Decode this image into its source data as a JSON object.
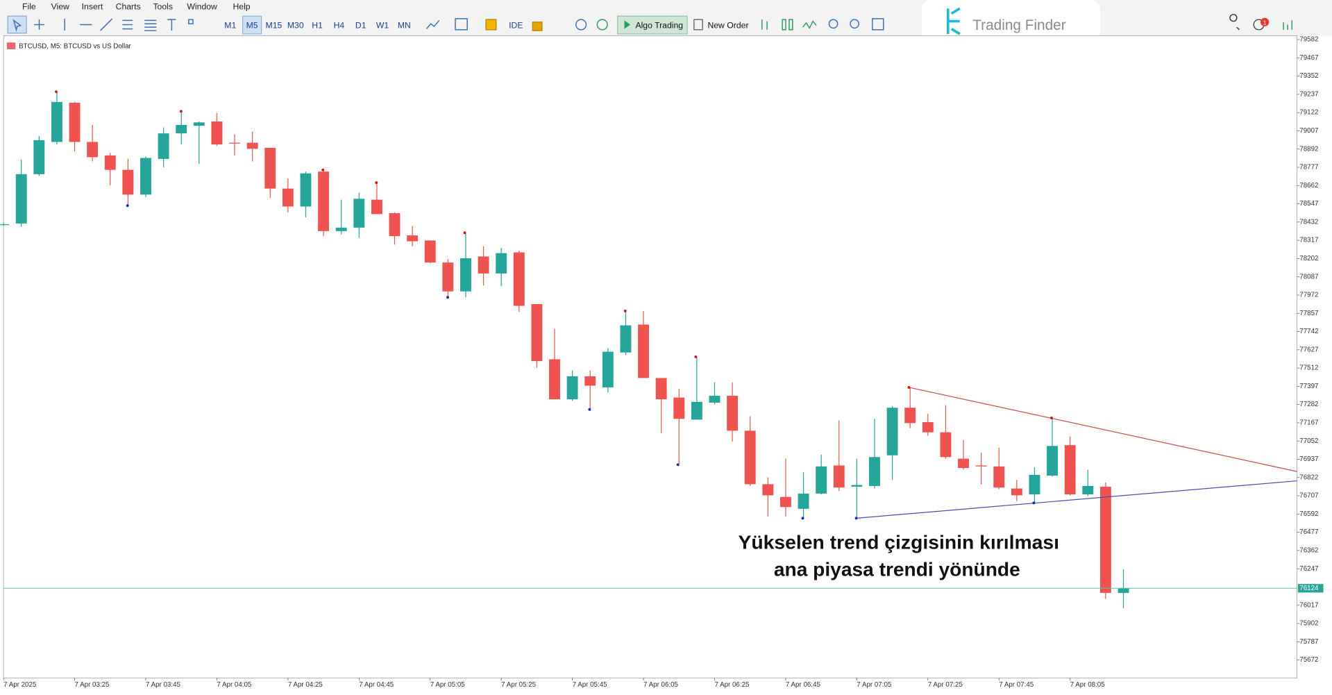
{
  "menu": [
    "File",
    "View",
    "Insert",
    "Charts",
    "Tools",
    "Window",
    "Help"
  ],
  "toolbar": {
    "timeframes": [
      "M1",
      "M5",
      "M15",
      "M30",
      "H1",
      "H4",
      "D1",
      "W1",
      "MN"
    ],
    "ide": "IDE",
    "algo_trading": "Algo Trading",
    "new_order": "New Order",
    "notifications": 1
  },
  "logo": "Trading Finder",
  "chart_data": {
    "type": "candlestick",
    "title": "BTCUSD, M5:  BTCUSD vs US Dollar",
    "annotation": [
      "Yükselen trend çizgisinin kırılması",
      "ana piyasa trendi yönünde"
    ],
    "up_color": "#26a69a",
    "down_color": "#ef5350",
    "categories": [
      "7 Apr 2025",
      null,
      null,
      null,
      "7 Apr 03:25",
      null,
      null,
      null,
      "7 Apr 03:45",
      null,
      null,
      null,
      "7 Apr 04:05",
      null,
      null,
      null,
      "7 Apr 04:25",
      null,
      null,
      null,
      "7 Apr 04:45",
      null,
      null,
      null,
      "7 Apr 05:05",
      null,
      null,
      null,
      "7 Apr 05:25",
      null,
      null,
      null,
      "7 Apr 05:45",
      null,
      null,
      null,
      "7 Apr 06:05",
      null,
      null,
      null,
      "7 Apr 06:25",
      null,
      null,
      null,
      "7 Apr 06:45",
      null,
      null,
      null,
      "7 Apr 07:05",
      null,
      null,
      null,
      "7 Apr 07:25",
      null,
      null,
      null,
      "7 Apr 07:45",
      null,
      null,
      null,
      "7 Apr 08:05",
      null,
      null,
      null
    ],
    "open": [
      78418,
      78423,
      78734,
      78937,
      79184,
      78937,
      78852,
      78761,
      78605,
      78830,
      78991,
      79039,
      79066,
      78932,
      78932,
      78900,
      78643,
      78530,
      78750,
      78375,
      78397,
      78573,
      78488,
      78348,
      78316,
      78177,
      77995,
      78215,
      78108,
      78241,
      77915,
      77567,
      77315,
      77460,
      77390,
      77610,
      77786,
      77449,
      77326,
      77187,
      77294,
      77337,
      77117,
      76780,
      76700,
      76625,
      76721,
      76898,
      76764,
      76769,
      76962,
      77262,
      77171,
      77107,
      76941,
      76898,
      76892,
      76753,
      76716,
      76834,
      77026,
      76716,
      76764,
      76095
    ],
    "high": [
      78429,
      78825,
      78975,
      79253,
      79189,
      79044,
      78868,
      78830,
      78846,
      79028,
      79130,
      79066,
      79119,
      78985,
      79002,
      78900,
      78707,
      78750,
      78761,
      78573,
      78616,
      78680,
      78493,
      78407,
      78316,
      78199,
      78365,
      78279,
      78268,
      78252,
      77915,
      77760,
      77497,
      77497,
      77637,
      77872,
      77872,
      77449,
      77380,
      77583,
      77422,
      77422,
      77208,
      76823,
      76941,
      76855,
      76967,
      77182,
      76941,
      77192,
      77273,
      77390,
      77224,
      77278,
      77058,
      76978,
      77010,
      76807,
      76887,
      77198,
      77080,
      76871,
      76791,
      76245
    ],
    "low": [
      78407,
      78402,
      78723,
      78921,
      78878,
      78814,
      78664,
      78536,
      78589,
      78777,
      78921,
      78798,
      78911,
      78852,
      78814,
      78584,
      78493,
      78461,
      78343,
      78354,
      78332,
      78482,
      78290,
      78279,
      78172,
      77958,
      77958,
      78033,
      78027,
      77867,
      77513,
      77315,
      77305,
      77251,
      77358,
      77594,
      77449,
      77101,
      76903,
      77187,
      77283,
      77048,
      76769,
      76577,
      76577,
      76566,
      76716,
      76737,
      76566,
      76753,
      76807,
      77133,
      77085,
      76941,
      76871,
      76780,
      76748,
      76673,
      76662,
      76828,
      76710,
      76705,
      76057,
      75999
    ],
    "close": [
      78418,
      78734,
      78948,
      79189,
      78937,
      78841,
      78761,
      78605,
      78836,
      78991,
      79044,
      79060,
      78921,
      78927,
      78894,
      78643,
      78530,
      78739,
      78375,
      78397,
      78579,
      78482,
      78343,
      78311,
      78177,
      77995,
      78204,
      78108,
      78236,
      77904,
      77556,
      77315,
      77460,
      77401,
      77615,
      77781,
      77449,
      77315,
      77192,
      77299,
      77337,
      77117,
      76780,
      76710,
      76636,
      76721,
      76892,
      76759,
      76775,
      76951,
      77262,
      77165,
      77107,
      76951,
      76882,
      76892,
      76759,
      76710,
      76839,
      77021,
      76716,
      76769,
      76095,
      76124
    ],
    "current_price": 76124,
    "ylim": [
      75559,
      79612
    ],
    "yticks": [
      79582,
      79467,
      79352,
      79237,
      79122,
      79007,
      78892,
      78777,
      78662,
      78547,
      78432,
      78317,
      78202,
      78087,
      77972,
      77857,
      77742,
      77627,
      77512,
      77397,
      77282,
      77167,
      77052,
      76937,
      76822,
      76707,
      76592,
      76477,
      76362,
      76247,
      76017,
      75902,
      75787,
      75672
    ]
  }
}
